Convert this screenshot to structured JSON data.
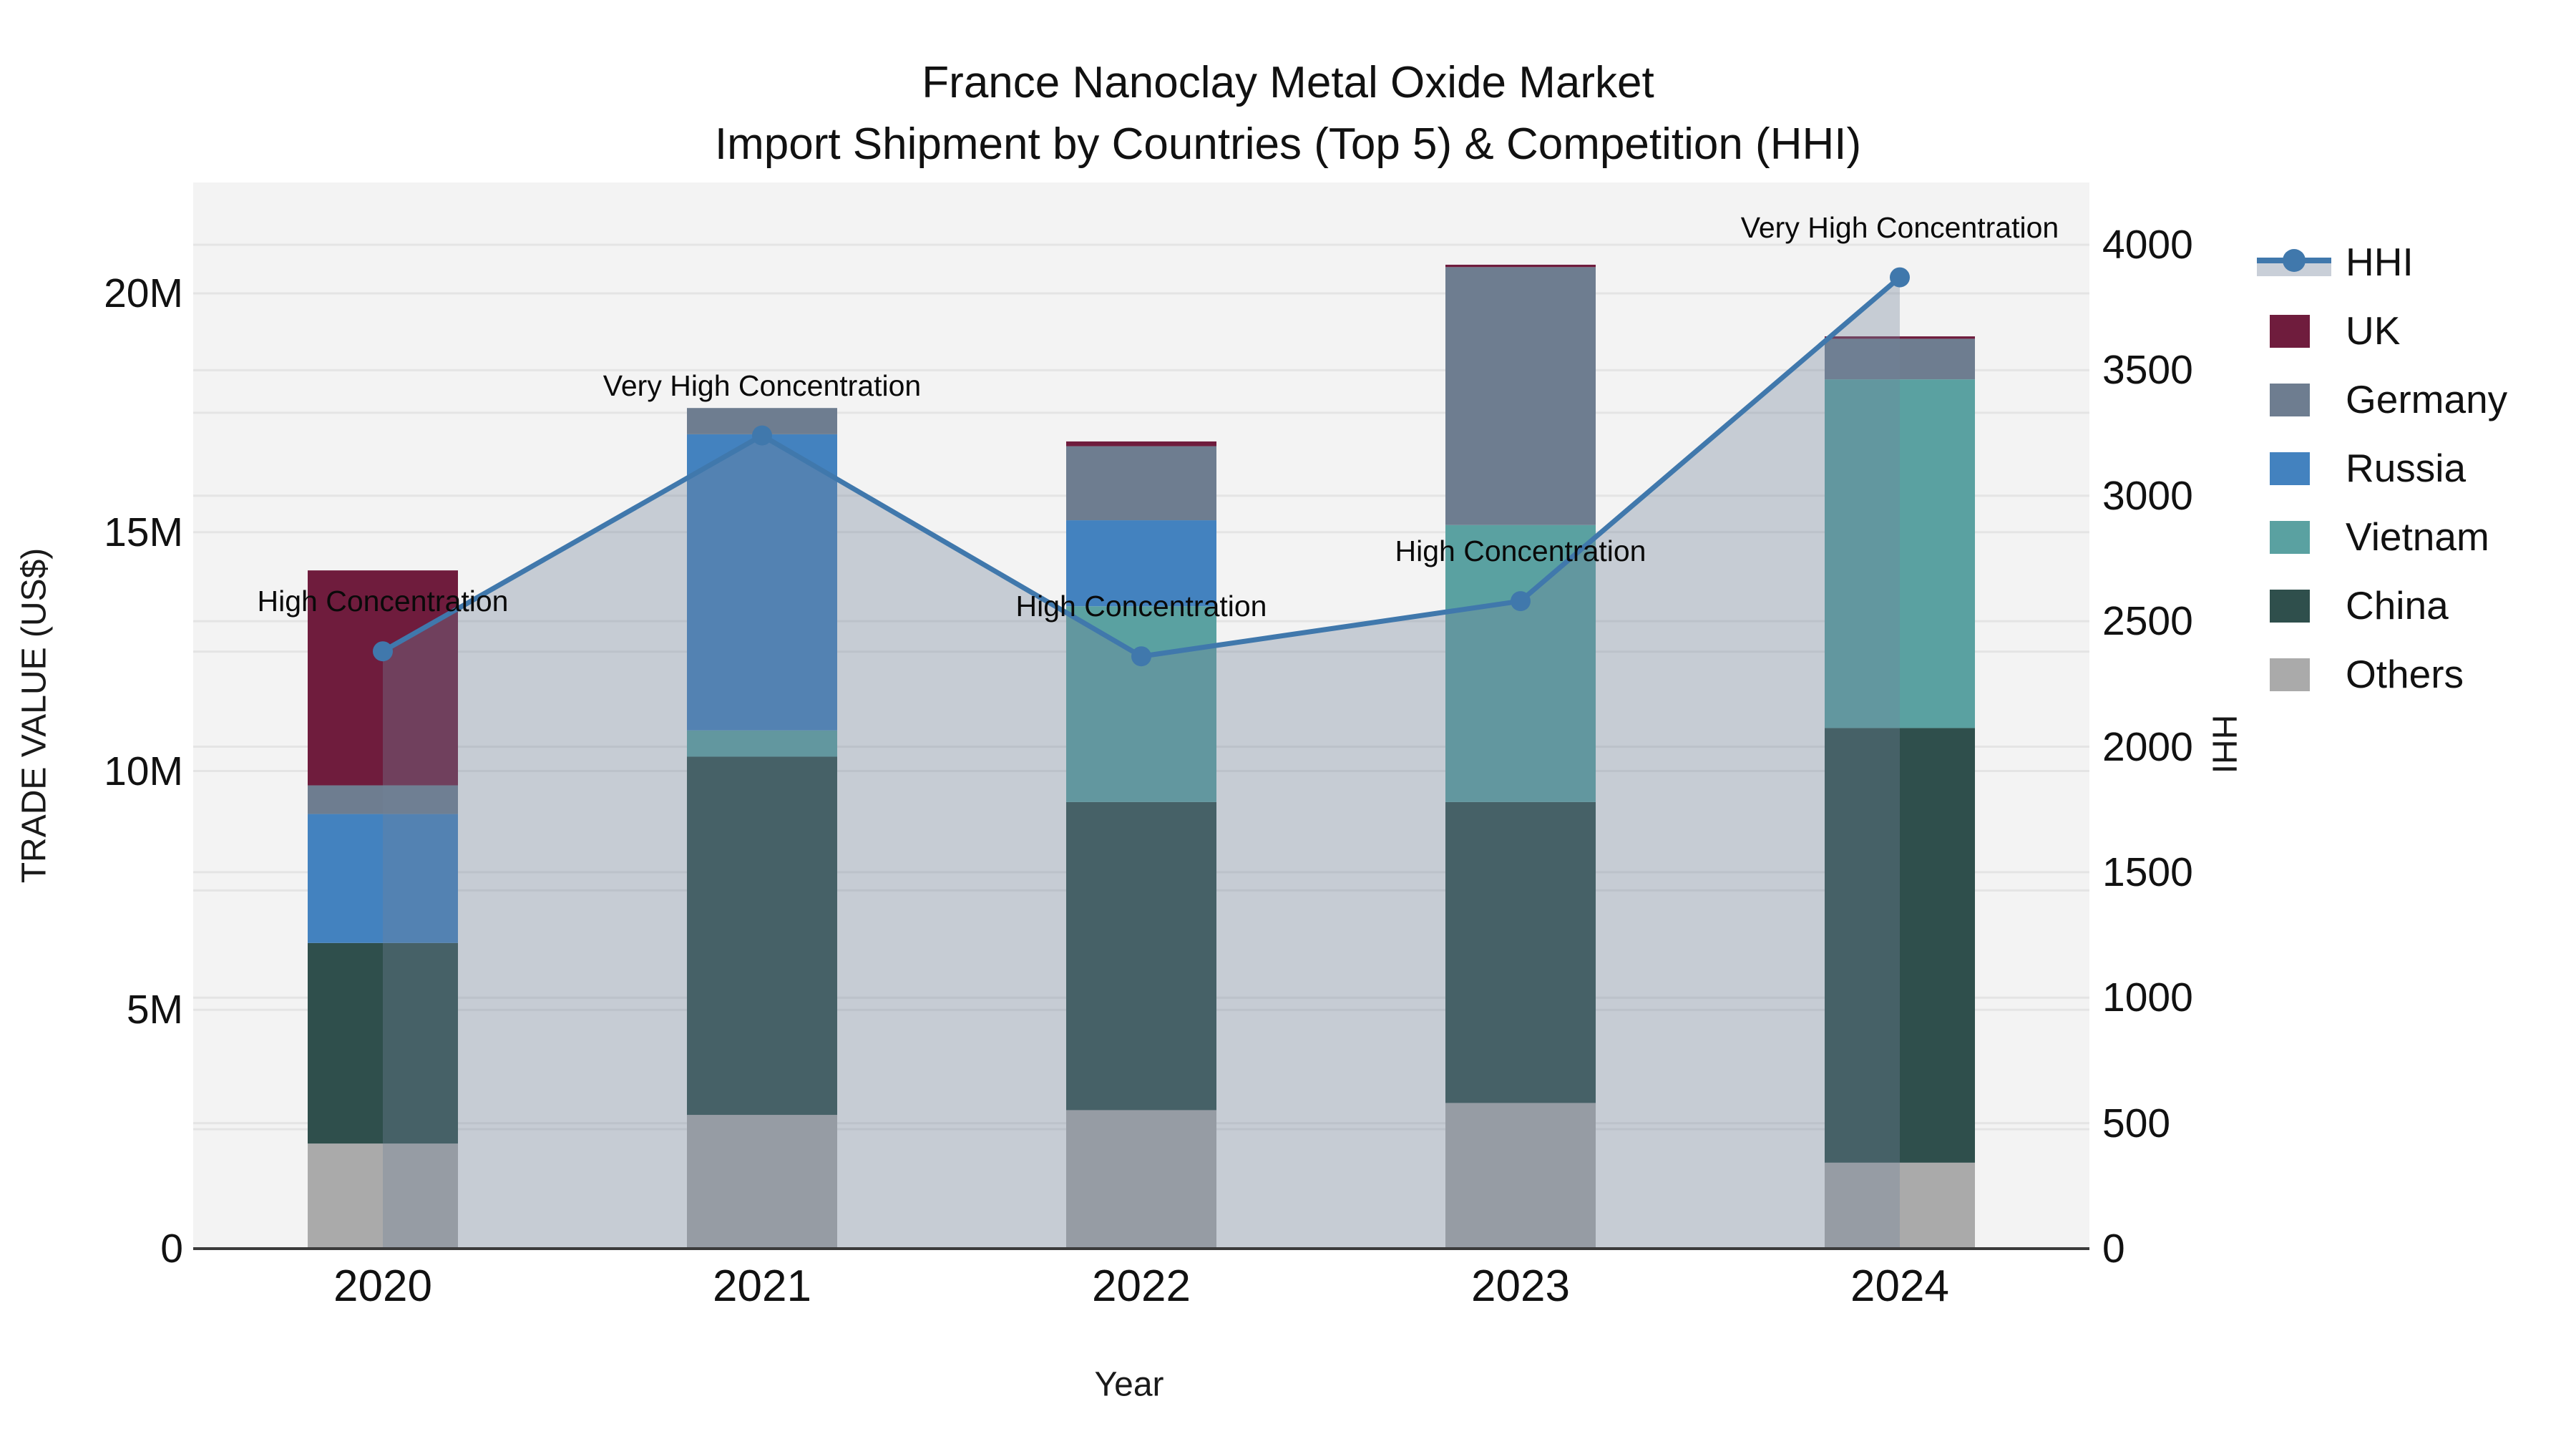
{
  "title": {
    "line1": "France Nanoclay Metal Oxide Market",
    "line2": "Import Shipment by Countries (Top 5) & Competition (HHI)"
  },
  "axes": {
    "y_left": {
      "title": "TRADE VALUE (US$)",
      "tick_labels": [
        "0",
        "5M",
        "10M",
        "15M",
        "20M"
      ],
      "tick_values": [
        0,
        5,
        10,
        15,
        20
      ],
      "grid_step": 2.5
    },
    "y_right": {
      "title": "HHI",
      "tick_labels": [
        "0",
        "500",
        "1000",
        "1500",
        "2000",
        "2500",
        "3000",
        "3500",
        "4000"
      ],
      "tick_values": [
        0,
        500,
        1000,
        1500,
        2000,
        2500,
        3000,
        3500,
        4000
      ]
    },
    "x": {
      "title": "Year",
      "tick_labels": [
        "2020",
        "2021",
        "2022",
        "2023",
        "2024"
      ]
    }
  },
  "legend": {
    "items": [
      {
        "label": "HHI",
        "kind": "line",
        "color": "#4078ac",
        "fill": "#c9cfd8"
      },
      {
        "label": "UK",
        "kind": "swatch",
        "color": "#6f1c3d"
      },
      {
        "label": "Germany",
        "kind": "swatch",
        "color": "#6e7d90"
      },
      {
        "label": "Russia",
        "kind": "swatch",
        "color": "#4382bf"
      },
      {
        "label": "Vietnam",
        "kind": "swatch",
        "color": "#5aa1a1"
      },
      {
        "label": "China",
        "kind": "swatch",
        "color": "#2f4f4c"
      },
      {
        "label": "Others",
        "kind": "swatch",
        "color": "#aaaaaa"
      }
    ]
  },
  "chart_data": {
    "type": "combo_stacked_bar_line",
    "categories": [
      "2020",
      "2021",
      "2022",
      "2023",
      "2024"
    ],
    "bar_unit": "US$ millions (trade value)",
    "series": [
      {
        "name": "Others",
        "color": "#aaaaaa",
        "values": [
          2.2,
          2.8,
          2.9,
          3.05,
          1.8
        ]
      },
      {
        "name": "China",
        "color": "#2f4f4c",
        "values": [
          4.2,
          7.5,
          6.45,
          6.3,
          9.1
        ]
      },
      {
        "name": "Vietnam",
        "color": "#5aa1a1",
        "values": [
          0,
          0.55,
          4.1,
          5.8,
          7.3
        ]
      },
      {
        "name": "Russia",
        "color": "#4382bf",
        "values": [
          2.7,
          6.2,
          1.8,
          0,
          0
        ]
      },
      {
        "name": "Germany",
        "color": "#6e7d90",
        "values": [
          0.6,
          0.55,
          1.55,
          5.4,
          0.85
        ]
      },
      {
        "name": "UK",
        "color": "#6f1c3d",
        "values": [
          4.5,
          0,
          0.1,
          0.05,
          0.05
        ]
      }
    ],
    "line": {
      "name": "HHI",
      "color": "#4078ac",
      "area_fill": "rgba(116,131,156,0.35)",
      "values": [
        2380,
        3240,
        2360,
        2580,
        3870
      ],
      "annotations": [
        "High Concentration",
        "Very High Concentration",
        "High Concentration",
        "High Concentration",
        "Very High Concentration"
      ]
    },
    "ylim_left_M": [
      0,
      22.3
    ],
    "ylim_right": [
      0,
      4250
    ],
    "grid": true,
    "legend_position": "right",
    "plot_bg": "#f3f3f3",
    "grid_color": "#e4e4e4",
    "axis_line_color": "#3b3b3b"
  }
}
